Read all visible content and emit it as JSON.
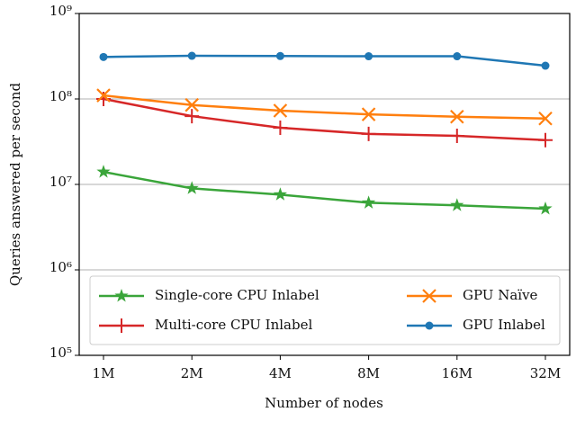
{
  "chart_data": {
    "type": "line",
    "xlabel": "Number of nodes",
    "ylabel": "Queries answered per second",
    "categories": [
      "1M",
      "2M",
      "4M",
      "8M",
      "16M",
      "32M"
    ],
    "yscale": "log",
    "ylim": [
      100000,
      1000000000
    ],
    "yticks": [
      {
        "value": 100000,
        "label": "10⁵"
      },
      {
        "value": 1000000,
        "label": "10⁶"
      },
      {
        "value": 10000000,
        "label": "10⁷"
      },
      {
        "value": 100000000,
        "label": "10⁸"
      },
      {
        "value": 1000000000,
        "label": "10⁹"
      }
    ],
    "grid": true,
    "legend": "lower center",
    "series": [
      {
        "name": "Single-core CPU Inlabel",
        "color": "#3aa53a",
        "marker": "star",
        "values": [
          14000000,
          9000000,
          7600000,
          6100000,
          5700000,
          5200000
        ]
      },
      {
        "name": "Multi-core CPU Inlabel",
        "color": "#d62728",
        "marker": "plus",
        "values": [
          100000000,
          63000000,
          46000000,
          39000000,
          37000000,
          33000000
        ]
      },
      {
        "name": "GPU Naïve",
        "color": "#ff7f0e",
        "marker": "x",
        "values": [
          110000000,
          85000000,
          73000000,
          66000000,
          62000000,
          59000000
        ]
      },
      {
        "name": "GPU Inlabel",
        "color": "#1f77b4",
        "marker": "circle",
        "values": [
          310000000,
          320000000,
          318000000,
          316000000,
          316000000,
          245000000
        ]
      }
    ]
  }
}
